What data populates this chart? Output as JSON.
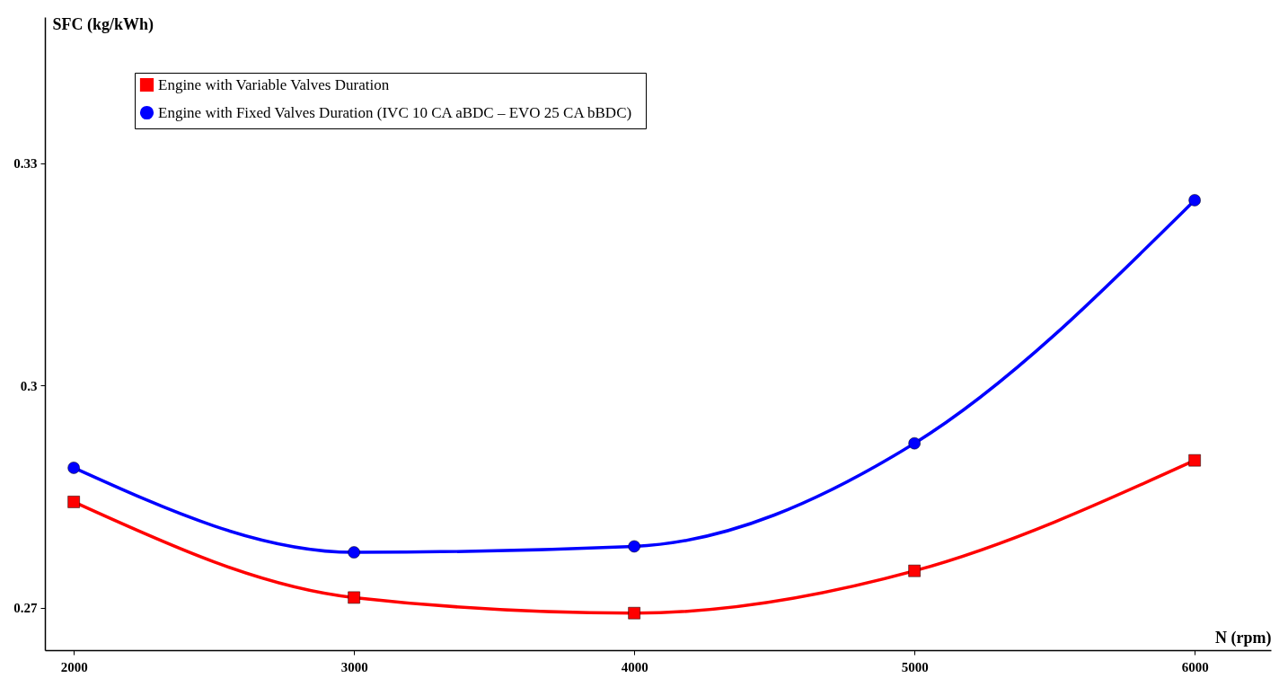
{
  "chart_data": {
    "type": "line",
    "xlabel": "N (rpm)",
    "ylabel": "SFC (kg/kWh)",
    "x": [
      2000,
      3000,
      4000,
      5000,
      6000
    ],
    "xlim": [
      1897,
      6272
    ],
    "xticks": [
      2000,
      3000,
      4000,
      5000,
      6000
    ],
    "ylim": [
      0.2643,
      0.3497
    ],
    "yticks": [
      0.27,
      0.3,
      0.33
    ],
    "series": [
      {
        "name": "Engine with Variable Valves Duration",
        "color": "#ff0000",
        "marker": "square",
        "values": [
          0.2843,
          0.2714,
          0.2693,
          0.275,
          0.2899
        ]
      },
      {
        "name": "Engine with Fixed Valves Duration (IVC 10 CA  aBDC – EVO 25 CA  bBDC)",
        "color": "#0000ff",
        "marker": "circle",
        "values": [
          0.2889,
          0.2775,
          0.2783,
          0.2922,
          0.325
        ]
      }
    ],
    "grid": false,
    "legend": "top left"
  }
}
